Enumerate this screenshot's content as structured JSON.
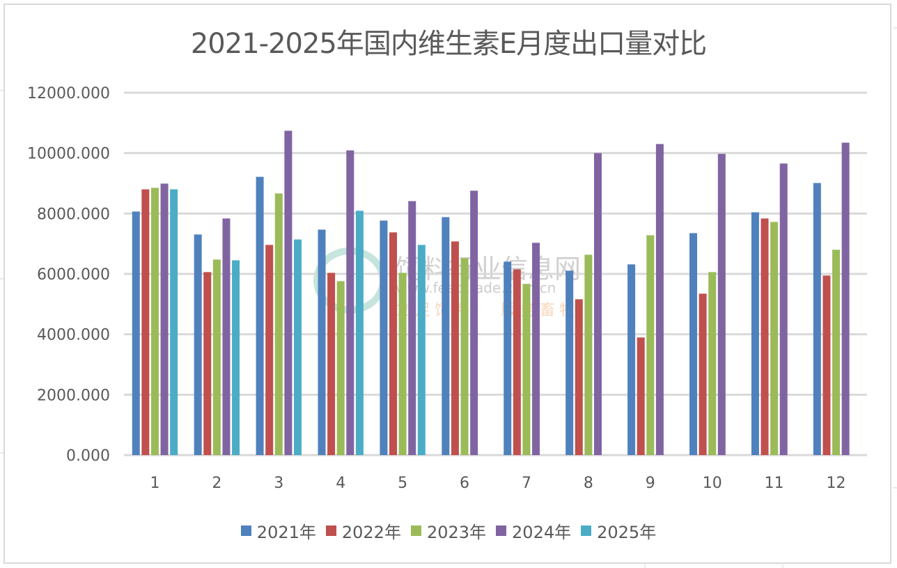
{
  "colors": {
    "series": [
      "#4f81bd",
      "#c0504d",
      "#9bbb59",
      "#8064a2",
      "#4bacc6"
    ],
    "gridline": "#d9d9d9",
    "text": "#595959"
  },
  "watermark": {
    "line1": "饲料行业信息网",
    "line2": "www.feedtrade.com.cn",
    "line3a": "立足饲料",
    "line3b": "服务畜牧"
  },
  "chart_data": {
    "type": "bar",
    "title": "2021-2025年国内维生素E月度出口量对比",
    "xlabel": "",
    "ylabel": "",
    "ylim": [
      0,
      12000
    ],
    "yticks": [
      0,
      2000,
      4000,
      6000,
      8000,
      10000,
      12000
    ],
    "ytick_labels": [
      "0.000",
      "2000.000",
      "4000.000",
      "6000.000",
      "8000.000",
      "10000.000",
      "12000.000"
    ],
    "grid": true,
    "legend_position": "bottom",
    "categories": [
      "1",
      "2",
      "3",
      "4",
      "5",
      "6",
      "7",
      "8",
      "9",
      "10",
      "11",
      "12"
    ],
    "series": [
      {
        "name": "2021年",
        "values": [
          8065,
          7305,
          9215,
          7465,
          7765,
          7880,
          6405,
          6105,
          6315,
          7350,
          8040,
          9010
        ]
      },
      {
        "name": "2022年",
        "values": [
          8800,
          6060,
          6960,
          6035,
          7375,
          7075,
          6150,
          5160,
          3895,
          5345,
          7835,
          5945
        ]
      },
      {
        "name": "2023年",
        "values": [
          8850,
          6475,
          8665,
          5760,
          6035,
          6520,
          5670,
          6635,
          7280,
          6060,
          7720,
          6800
        ]
      },
      {
        "name": "2024年",
        "values": [
          8990,
          7835,
          10740,
          10090,
          8410,
          8755,
          7030,
          10000,
          10300,
          9975,
          9655,
          10345
        ]
      },
      {
        "name": "2025年",
        "values": [
          8800,
          6450,
          7140,
          8090,
          6960,
          null,
          null,
          null,
          null,
          null,
          null,
          null
        ]
      }
    ]
  }
}
